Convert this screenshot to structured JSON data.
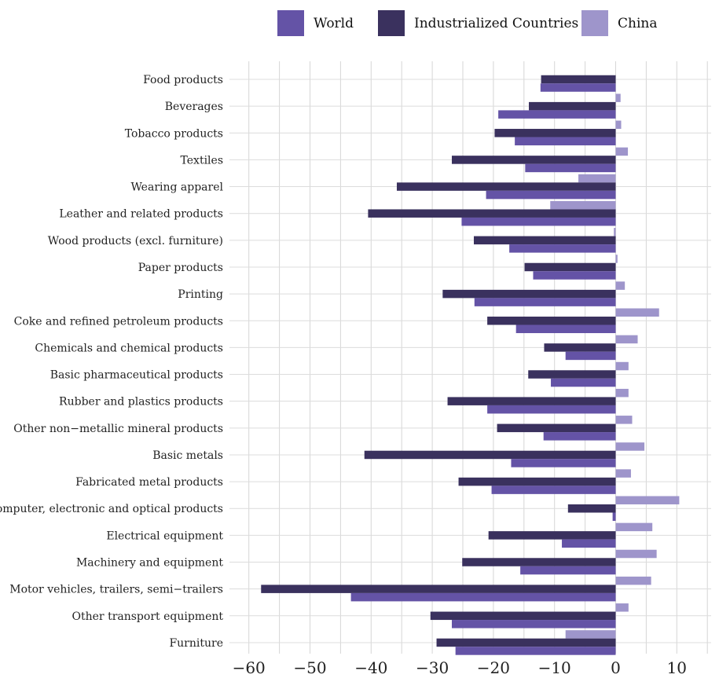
{
  "chart_data": {
    "type": "bar",
    "orientation": "horizontal",
    "title": "",
    "xlabel": "",
    "ylabel": "",
    "xlim": [
      -62,
      15
    ],
    "xticks": [
      -60,
      -50,
      -40,
      -30,
      -20,
      -10,
      0,
      10
    ],
    "xtick_labels": [
      "−60",
      "−50",
      "−40",
      "−30",
      "−20",
      "−10",
      "0",
      "10"
    ],
    "grid": true,
    "legend_position": "top",
    "categories": [
      "Food products",
      "Beverages",
      "Tobacco products",
      "Textiles",
      "Wearing apparel",
      "Leather and related products",
      "Wood products (excl. furniture)",
      "Paper products",
      "Printing",
      "Coke and refined petroleum products",
      "Chemicals and chemical products",
      "Basic pharmaceutical products",
      "Rubber and plastics products",
      "Other non−metallic mineral products",
      "Basic metals",
      "Fabricated metal products",
      "Computer, electronic and optical products",
      "Electrical equipment",
      "Machinery and equipment",
      "Motor vehicles, trailers, semi−trailers",
      "Other transport equipment",
      "Furniture"
    ],
    "series": [
      {
        "name": "World",
        "color": "#6453a6",
        "values": [
          -12.3,
          -19.2,
          -16.5,
          -14.8,
          -21.2,
          -25.2,
          -17.4,
          -13.5,
          -23.1,
          -16.3,
          -8.2,
          -10.6,
          -21.0,
          -11.8,
          -17.1,
          -20.3,
          -0.5,
          -8.8,
          -15.6,
          -43.3,
          -26.8,
          -26.2
        ]
      },
      {
        "name": "Industrialized Countries",
        "color": "#3a315e",
        "values": [
          -12.2,
          -14.2,
          -19.8,
          -26.8,
          -35.8,
          -40.5,
          -23.2,
          -14.9,
          -28.3,
          -21.0,
          -11.7,
          -14.3,
          -27.5,
          -19.4,
          -41.1,
          -25.7,
          -7.8,
          -20.8,
          -25.1,
          -58.0,
          -30.3,
          -29.3
        ]
      },
      {
        "name": "China",
        "color": "#9e95cb",
        "values": [
          0.0,
          0.8,
          0.9,
          2.0,
          -6.1,
          -10.7,
          -0.3,
          0.3,
          1.5,
          7.1,
          3.6,
          2.1,
          2.1,
          2.7,
          4.7,
          2.5,
          10.4,
          6.0,
          6.7,
          5.8,
          2.1,
          -8.2
        ]
      }
    ]
  }
}
